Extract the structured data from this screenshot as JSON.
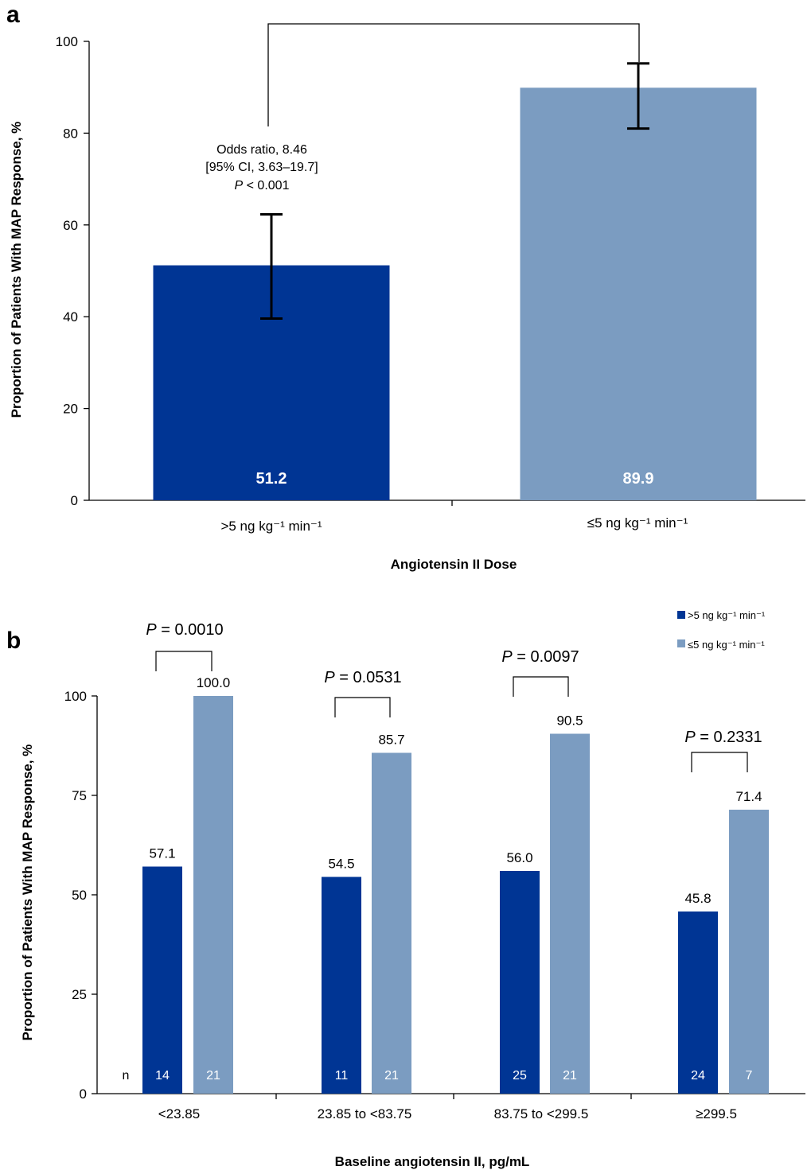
{
  "colors": {
    "dark": "#003594",
    "light": "#7b9cc1"
  },
  "chart_data": [
    {
      "panel": "a",
      "type": "bar",
      "ylabel": "Proportion of Patients With MAP Response, %",
      "xlabel": "Angiotensin II Dose",
      "ylim": [
        0,
        100
      ],
      "yticks": [
        "0",
        "20",
        "40",
        "60",
        "80",
        "100"
      ],
      "categories": [
        ">5 ng kg⁻¹ min⁻¹",
        "≤5 ng kg⁻¹ min⁻¹"
      ],
      "values": [
        51.2,
        89.9
      ],
      "value_labels": [
        "51.2",
        "89.9"
      ],
      "error_low": [
        39.6,
        81.0
      ],
      "error_high": [
        62.3,
        95.2
      ],
      "annotation": [
        "Odds ratio, 8.46",
        "[95% CI, 3.63–19.7]",
        "P < 0.001"
      ]
    },
    {
      "panel": "b",
      "type": "bar",
      "ylabel": "Proportion of Patients With MAP Response, %",
      "xlabel": "Baseline angiotensin II, pg/mL",
      "ylim": [
        0,
        100
      ],
      "yticks": [
        "0",
        "25",
        "50",
        "75",
        "100"
      ],
      "categories": [
        "<23.85",
        "23.85 to <83.75",
        "83.75 to <299.5",
        "≥299.5"
      ],
      "series": [
        {
          "name": ">5 ng kg⁻¹ min⁻¹",
          "values": [
            57.1,
            54.5,
            56.0,
            45.8
          ],
          "labels": [
            "57.1",
            "54.5",
            "56.0",
            "45.8"
          ],
          "n": [
            "14",
            "11",
            "25",
            "24"
          ]
        },
        {
          "name": "≤5 ng kg⁻¹ min⁻¹",
          "values": [
            100.0,
            85.7,
            90.5,
            71.4
          ],
          "labels": [
            "100.0",
            "85.7",
            "90.5",
            "71.4"
          ],
          "n": [
            "21",
            "21",
            "21",
            "7"
          ]
        }
      ],
      "p_values": [
        "P = 0.0010",
        "P = 0.0531",
        "P = 0.0097",
        "P = 0.2331"
      ],
      "n_label": "n",
      "legend_position": "top-right"
    }
  ]
}
